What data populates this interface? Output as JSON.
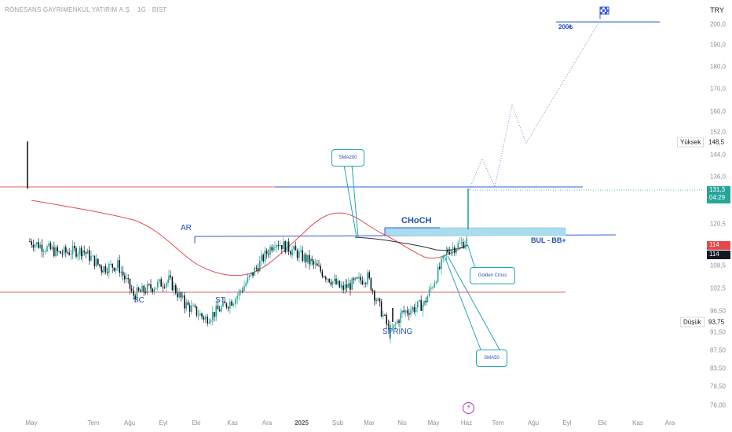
{
  "header": {
    "title": "RÖNESANS GAYRİMENKUL YATIRIM A.Ş. · 1G · BIST",
    "currency": "TRY"
  },
  "price_axis": {
    "ticks": [
      "200,0",
      "190,0",
      "180,0",
      "170,0",
      "160,0",
      "152,0",
      "144,0",
      "136,0",
      "120,5",
      "108,5",
      "102,5",
      "96,50",
      "91,50",
      "87,50",
      "83,50",
      "79,50",
      "76,00"
    ],
    "high_label": "Yüksek",
    "high_value": "148,5",
    "low_label": "Düşük",
    "low_value": "93,75",
    "current_price": "131,3",
    "countdown": "04:29",
    "price_red": "114",
    "price_black": "114"
  },
  "time_axis": {
    "labels": [
      "May",
      "Tem",
      "Ağu",
      "Eyl",
      "Eki",
      "Kas",
      "Ara",
      "2025",
      "Şub",
      "Mar",
      "Nis",
      "May",
      "Haz",
      "Tem",
      "Ağu",
      "Eyl",
      "Eki",
      "Kas",
      "Ara"
    ]
  },
  "annotations": {
    "ar": "AR",
    "sc": "SC",
    "st": "ST",
    "spring": "SPRİNG",
    "choch": "CHoCH",
    "bul_bb": "BUL -  BB+",
    "target": "200₺",
    "sma200": "SMA200",
    "sma50": "SMA50",
    "golden_cross": "Golden Cross"
  },
  "colors": {
    "up": "#26a69a",
    "down": "#131722",
    "sma50": "#e5484d",
    "sma200": "#2a2e39",
    "resistance": "#e06666",
    "support": "#e06666",
    "level_blue": "#2f5bd3",
    "zone": "#a9dcef",
    "annotation_text": "#1f4fb4",
    "callout_border": "#22a4b5"
  },
  "chart_data": {
    "type": "candlestick",
    "symbol": "RÖNESANS GAYRİMENKUL YATIRIM A.Ş.",
    "interval": "1G",
    "exchange": "BIST",
    "currency": "TRY",
    "x_range": [
      "May",
      "Ara"
    ],
    "y_range": [
      76,
      205
    ],
    "last_price": 131.3,
    "high": 148.5,
    "low": 93.75,
    "series": [
      {
        "name": "price",
        "points": [
          {
            "x": "May",
            "y": 131
          },
          {
            "x": "May",
            "y": 127
          },
          {
            "x": "Tem",
            "y": 128
          },
          {
            "x": "Tem",
            "y": 122
          },
          {
            "x": "Ağu",
            "y": 123
          },
          {
            "x": "Eyl",
            "y": 113
          },
          {
            "x": "Eki",
            "y": 118
          },
          {
            "x": "Eki",
            "y": 110
          },
          {
            "x": "Kas",
            "y": 105
          },
          {
            "x": "Kas",
            "y": 112
          },
          {
            "x": "Ara",
            "y": 131
          },
          {
            "x": "Ara",
            "y": 128
          },
          {
            "x": "2025",
            "y": 124
          },
          {
            "x": "Şub",
            "y": 115
          },
          {
            "x": "Mar",
            "y": 119
          },
          {
            "x": "Mar",
            "y": 100
          },
          {
            "x": "Nis",
            "y": 107
          },
          {
            "x": "May",
            "y": 110
          },
          {
            "x": "May",
            "y": 128
          },
          {
            "x": "Haz",
            "y": 131.3
          }
        ]
      }
    ]
  }
}
